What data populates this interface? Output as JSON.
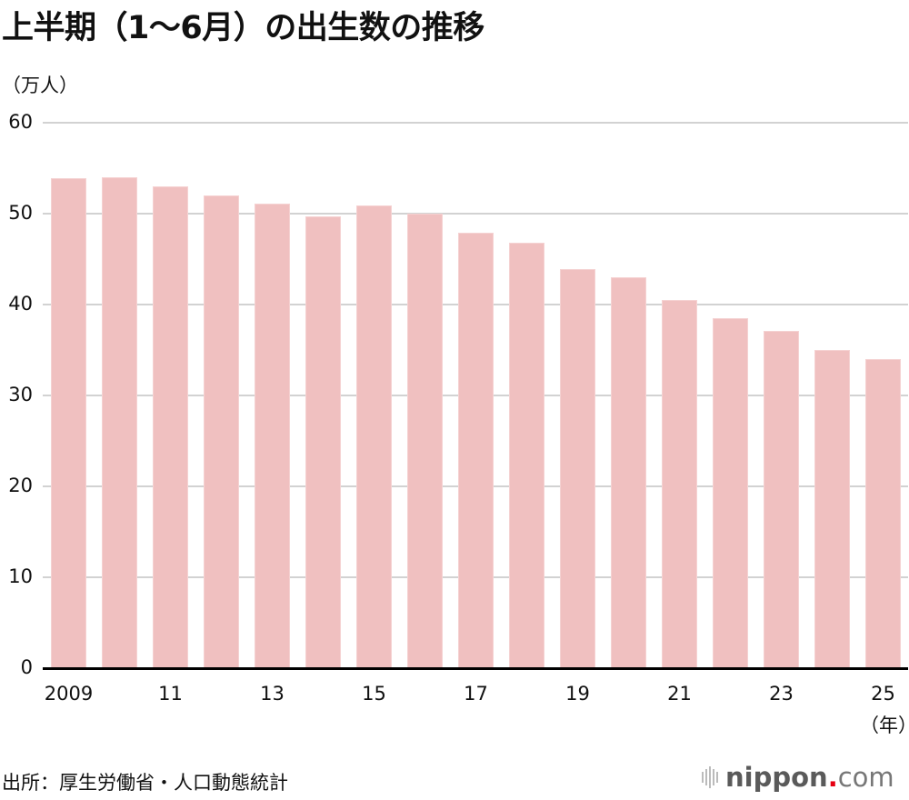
{
  "title": "上半期（1～6月）の出生数の推移",
  "unit_label": "（万人）",
  "x_unit_label": "（年）",
  "source": "出所：厚生労働省・人口動態統計",
  "logo": {
    "icon": "sound-wave-icon",
    "name": "nippon",
    "dot": ".",
    "tld": "com"
  },
  "colors": {
    "bar": "#f0c0c0",
    "grid": "#d2d2d2",
    "axis": "#000000",
    "logo_dot": "#e60012"
  },
  "y_ticks": [
    "60",
    "50",
    "40",
    "30",
    "20",
    "10",
    "0"
  ],
  "x_ticks": [
    "2009",
    "11",
    "13",
    "15",
    "17",
    "19",
    "21",
    "23",
    "25"
  ],
  "chart_data": {
    "type": "bar",
    "title": "上半期（1～6月）の出生数の推移",
    "xlabel": "（年）",
    "ylabel": "（万人）",
    "ylim": [
      0,
      60
    ],
    "y_ticks": [
      0,
      10,
      20,
      30,
      40,
      50,
      60
    ],
    "grid": true,
    "legend": null,
    "categories": [
      "2009",
      "2010",
      "2011",
      "2012",
      "2013",
      "2014",
      "2015",
      "2016",
      "2017",
      "2018",
      "2019",
      "2020",
      "2021",
      "2022",
      "2023",
      "2024",
      "2025"
    ],
    "tick_labels": [
      "2009",
      "",
      "11",
      "",
      "13",
      "",
      "15",
      "",
      "17",
      "",
      "19",
      "",
      "21",
      "",
      "23",
      "",
      "25"
    ],
    "values": [
      53.9,
      54.0,
      53.0,
      52.0,
      51.1,
      49.7,
      50.9,
      50.0,
      47.9,
      46.8,
      43.9,
      43.0,
      40.5,
      38.5,
      37.1,
      35.0,
      34.0
    ]
  }
}
